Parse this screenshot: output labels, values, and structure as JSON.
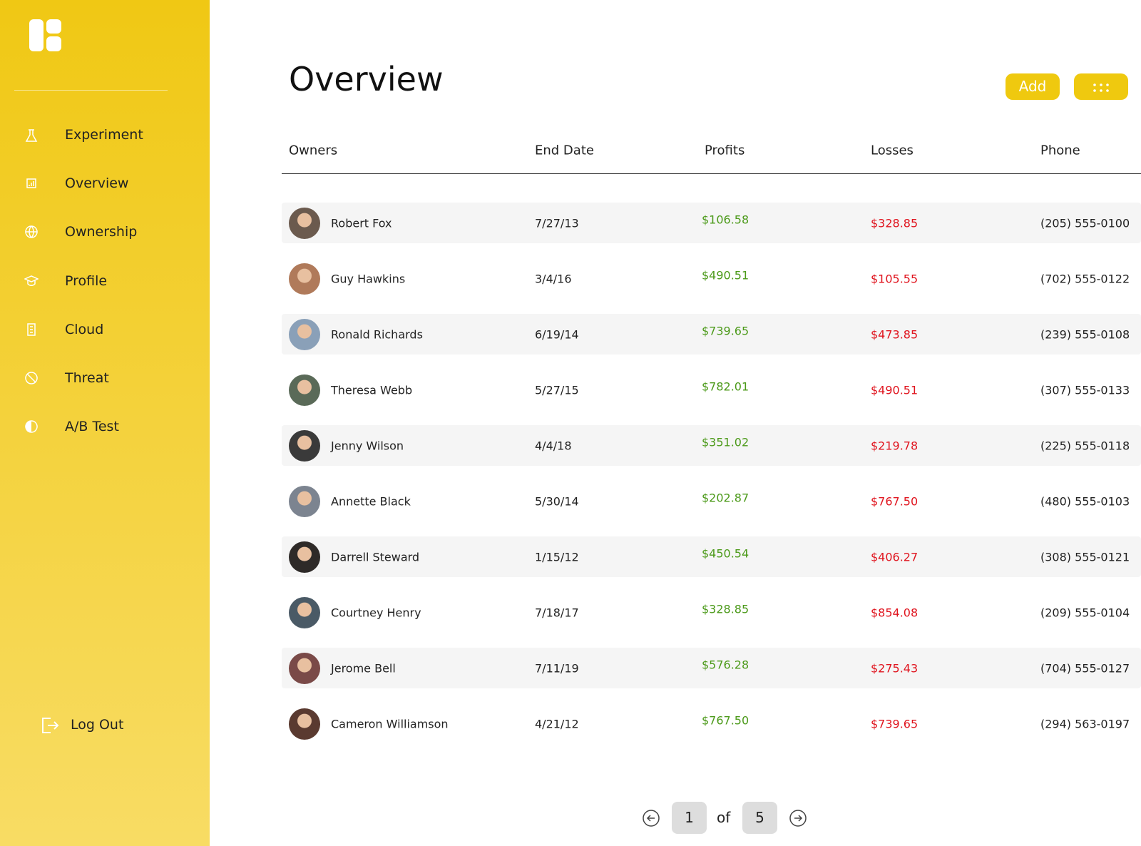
{
  "sidebar": {
    "nav": [
      "Experiment",
      "Overview",
      "Ownership",
      "Profile",
      "Cloud",
      "Threat",
      "A/B Test"
    ],
    "logout": "Log Out"
  },
  "header": {
    "title": "Overview",
    "add_button": "Add"
  },
  "table": {
    "columns": [
      "Owners",
      "End Date",
      "Profits",
      "Losses",
      "Phone"
    ],
    "rows": [
      [
        "Robert Fox",
        "7/27/13",
        "$106.58",
        "$328.85",
        "(205) 555-0100"
      ],
      [
        "Guy Hawkins",
        "3/4/16",
        "$490.51",
        "$105.55",
        "(702) 555-0122"
      ],
      [
        "Ronald Richards",
        "6/19/14",
        "$739.65",
        "$473.85",
        "(239) 555-0108"
      ],
      [
        "Theresa Webb",
        "5/27/15",
        "$782.01",
        "$490.51",
        "(307) 555-0133"
      ],
      [
        "Jenny Wilson",
        "4/4/18",
        "$351.02",
        "$219.78",
        "(225) 555-0118"
      ],
      [
        "Annette Black",
        "5/30/14",
        "$202.87",
        "$767.50",
        "(480) 555-0103"
      ],
      [
        "Darrell Steward",
        "1/15/12",
        "$450.54",
        "$406.27",
        "(308) 555-0121"
      ],
      [
        "Courtney Henry",
        "7/18/17",
        "$328.85",
        "$854.08",
        "(209) 555-0104"
      ],
      [
        "Jerome Bell",
        "7/11/19",
        "$576.28",
        "$275.43",
        "(704) 555-0127"
      ],
      [
        "Cameron Williamson",
        "4/21/12",
        "$767.50",
        "$739.65",
        "(294) 563-0197"
      ]
    ]
  },
  "pagination": {
    "current": 1,
    "of": "of",
    "total": 5
  }
}
